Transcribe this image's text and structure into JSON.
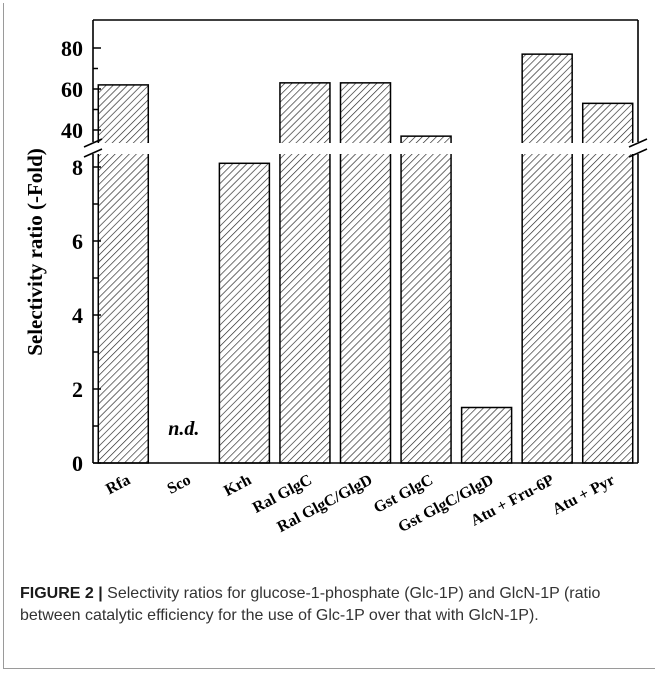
{
  "chart_data": {
    "type": "bar",
    "title": "",
    "xlabel": "",
    "ylabel": "Selectivity ratio (-Fold)",
    "categories": [
      "Rfa",
      "Sco",
      "Krh",
      "Ral GlgC",
      "Ral GlgC/GlgD",
      "Gst GlgC",
      "Gst GlgC/GlgD",
      "Atu + Fru-6P",
      "Atu + Pyr"
    ],
    "values": [
      62,
      null,
      8.1,
      63,
      63,
      37,
      1.5,
      77,
      53
    ],
    "annotations": [
      {
        "category": "Sco",
        "text": "n.d."
      }
    ],
    "y_axis_break": {
      "lower_range": [
        0,
        8.5
      ],
      "upper_range": [
        30,
        85
      ]
    },
    "lower_ticks": [
      0,
      2,
      4,
      6,
      8
    ],
    "upper_ticks": [
      40,
      60,
      80
    ],
    "bar_fill": "hatched",
    "bar_color": "#333333",
    "grid": false
  },
  "caption": {
    "label": "FIGURE 2 |",
    "text": "Selectivity ratios for glucose-1-phosphate (Glc-1P) and GlcN-1P (ratio between catalytic efficiency for the use of Glc-1P over that with GlcN-1P)."
  }
}
